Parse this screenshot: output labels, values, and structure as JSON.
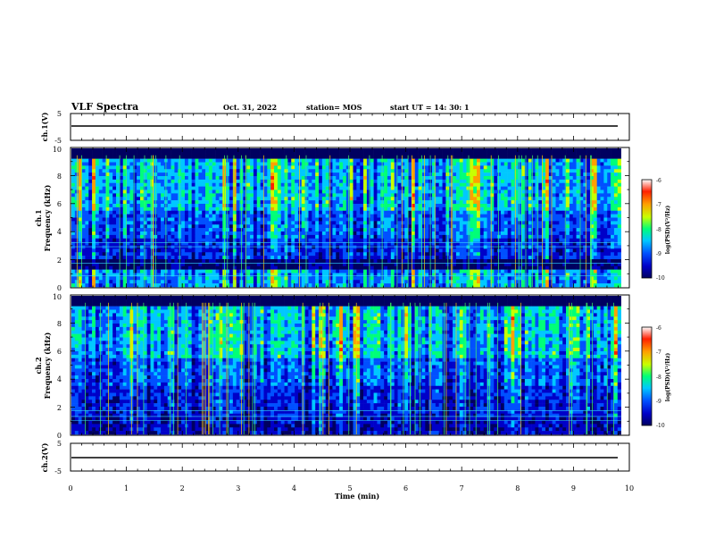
{
  "header": {
    "title": "VLF Spectra",
    "date": "Oct. 31, 2022",
    "station": "station= MOS",
    "start": "start  UT  =   14: 30: 1"
  },
  "colors": {
    "scale": [
      "#000060",
      "#0000c8",
      "#0050ff",
      "#00c8ff",
      "#00ff78",
      "#c8ff00",
      "#ffa000",
      "#ff2000",
      "#ffffff"
    ]
  },
  "chart_data": [
    {
      "type": "line",
      "name": "ch1-waveform",
      "ylabel": "ch.1(V)",
      "ylim": [
        -5,
        5
      ],
      "y_ticks": [
        "5",
        "-5"
      ],
      "xlim": [
        0,
        10
      ],
      "level": 0
    },
    {
      "type": "heatmap",
      "name": "ch1-spectrogram",
      "ylabel_top": "ch.1",
      "ylabel": "Frequency (kHz)",
      "ylim": [
        0,
        10
      ],
      "y_ticks": [
        "0",
        "2",
        "4",
        "6",
        "8",
        "10"
      ],
      "xlim": [
        0,
        9.85
      ],
      "colorbar": {
        "label": "log(PSD)(V²/Hz)",
        "range": [
          -10,
          -6
        ],
        "ticks": [
          "-6",
          "-7",
          "-8",
          "-9",
          "-10"
        ]
      }
    },
    {
      "type": "heatmap",
      "name": "ch2-spectrogram",
      "ylabel_top": "ch.2",
      "ylabel": "Frequency (kHz)",
      "ylim": [
        0,
        10
      ],
      "y_ticks": [
        "0",
        "2",
        "4",
        "6",
        "8",
        "10"
      ],
      "xlim": [
        0,
        9.85
      ],
      "colorbar": {
        "label": "log(PSD)(V²/Hz)",
        "range": [
          -10,
          -6
        ],
        "ticks": [
          "-6",
          "-7",
          "-8",
          "-9",
          "-10"
        ]
      }
    },
    {
      "type": "line",
      "name": "ch2-waveform",
      "ylabel": "ch.2(V)",
      "ylim": [
        -5,
        5
      ],
      "y_ticks": [
        "5",
        "-5"
      ],
      "xlim": [
        0,
        10
      ],
      "level": 0
    }
  ],
  "xaxis": {
    "label": "Time (min)",
    "range": [
      0,
      10
    ],
    "ticks": [
      "0",
      "1",
      "2",
      "3",
      "4",
      "5",
      "6",
      "7",
      "8",
      "9",
      "10"
    ]
  }
}
